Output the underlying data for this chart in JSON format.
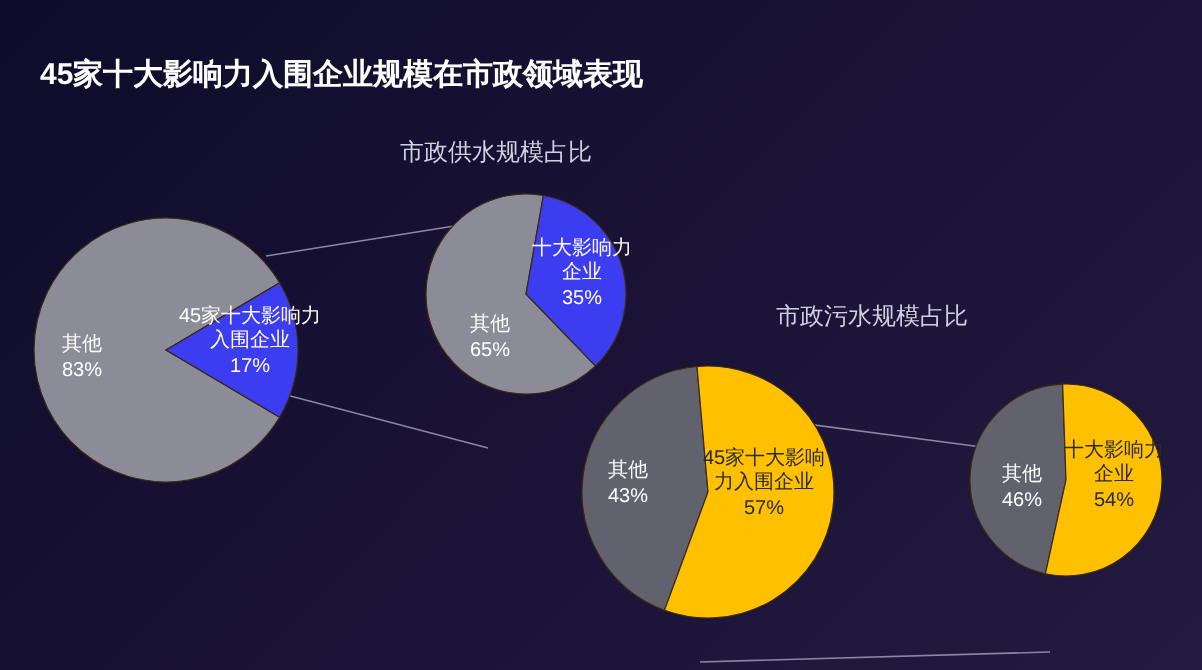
{
  "chart_data": [
    {
      "type": "pie",
      "title": "45家十大影响力入围企业规模在市政领域表现",
      "categories": [
        "其他",
        "45家十大影响力入围企业"
      ],
      "values": [
        83,
        17
      ],
      "colors": [
        "#8c8c98",
        "#3c3cf0"
      ],
      "value_labels": [
        "83%",
        "17%"
      ]
    },
    {
      "type": "pie",
      "title": "市政供水规模占比",
      "categories": [
        "其他",
        "十大影响力企业"
      ],
      "values": [
        65,
        35
      ],
      "colors": [
        "#8c8c98",
        "#3c3cf0"
      ],
      "value_labels": [
        "65%",
        "35%"
      ]
    },
    {
      "type": "pie",
      "title": "市政污水规模占比",
      "categories": [
        "其他",
        "45家十大影响力入围企业"
      ],
      "values": [
        43,
        57
      ],
      "colors": [
        "#62626f",
        "#ffc000"
      ],
      "value_labels": [
        "43%",
        "57%"
      ]
    },
    {
      "type": "pie",
      "categories": [
        "其他",
        "十大影响力企业"
      ],
      "values": [
        46,
        54
      ],
      "colors": [
        "#62626f",
        "#ffc000"
      ],
      "value_labels": [
        "46%",
        "54%"
      ]
    }
  ]
}
